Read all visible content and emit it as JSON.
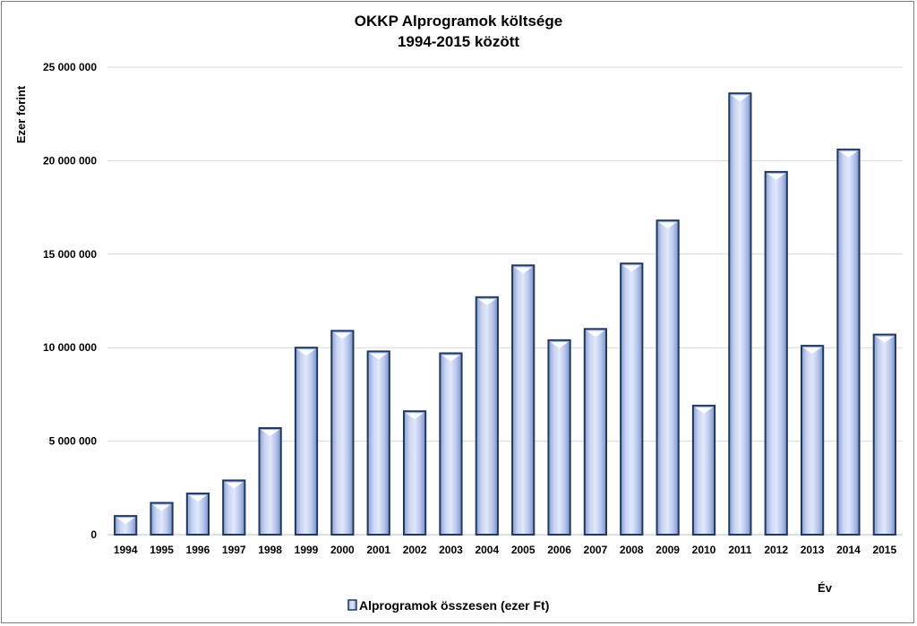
{
  "chart_data": {
    "type": "bar",
    "title": [
      "OKKP  Alprogramok  költsége",
      "1994-2015  között"
    ],
    "ylabel": "Ezer forint",
    "xlabel": "Év",
    "categories": [
      "1994",
      "1995",
      "1996",
      "1997",
      "1998",
      "1999",
      "2000",
      "2001",
      "2002",
      "2003",
      "2004",
      "2005",
      "2006",
      "2007",
      "2008",
      "2009",
      "2010",
      "2011",
      "2012",
      "2013",
      "2014",
      "2015"
    ],
    "series": [
      {
        "name": "Alprogramok összesen (ezer Ft)",
        "values": [
          1000000,
          1700000,
          2200000,
          2900000,
          5700000,
          10000000,
          10900000,
          9800000,
          6600000,
          9700000,
          12700000,
          14400000,
          10400000,
          11000000,
          14500000,
          16800000,
          6900000,
          23600000,
          19400000,
          10100000,
          20600000,
          10700000
        ]
      }
    ],
    "ylim": [
      0,
      25000000
    ],
    "yticks": [
      0,
      5000000,
      10000000,
      15000000,
      20000000,
      25000000
    ],
    "ytick_labels": [
      "0",
      "5 000 000",
      "10 000 000",
      "15 000 000",
      "20 000 000",
      "25 000 000"
    ],
    "grid": true,
    "legend_position": "bottom"
  },
  "colors": {
    "bar_fill_light": "#d9e2f7",
    "bar_fill_mid": "#b3c3ea",
    "bar_fill_dark": "#7f95c9",
    "bar_edge": "#1f3864",
    "grid": "#d9d9d9",
    "frame": "#7f7f7f"
  }
}
